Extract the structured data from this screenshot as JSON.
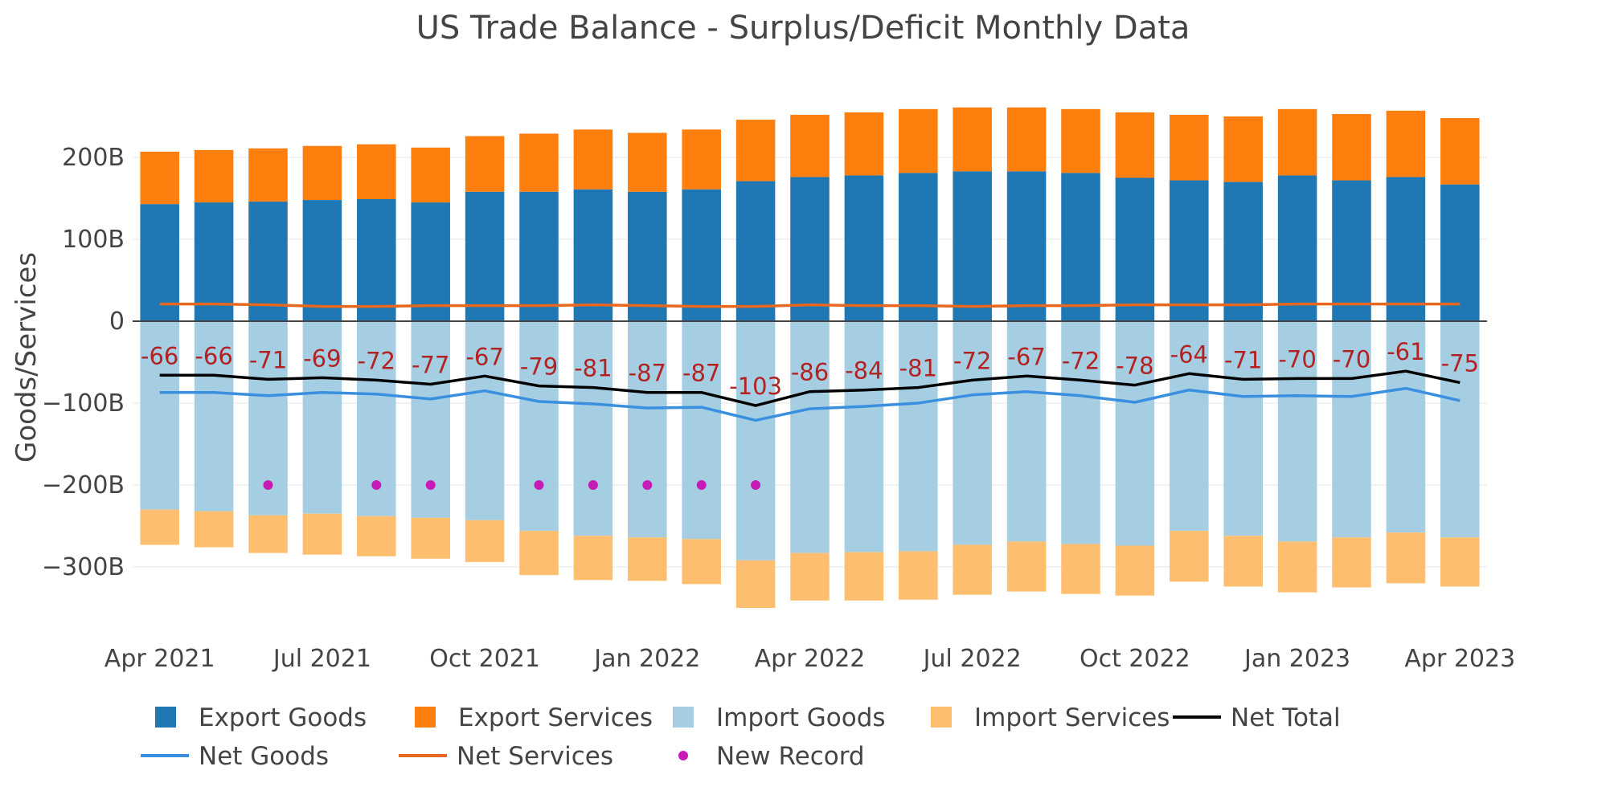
{
  "chart_data": {
    "type": "bar",
    "title": "US Trade Balance - Surplus/Deficit Monthly Data",
    "ylabel": "Goods/Services",
    "xlabel": "",
    "ylim": [
      -370,
      265
    ],
    "y_ticks": [
      {
        "value": 200,
        "label": "200B"
      },
      {
        "value": 100,
        "label": "100B"
      },
      {
        "value": 0,
        "label": "0"
      },
      {
        "value": -100,
        "label": "−100B"
      },
      {
        "value": -200,
        "label": "−200B"
      },
      {
        "value": -300,
        "label": "−300B"
      }
    ],
    "x_ticks": [
      {
        "index": 0,
        "label": "Apr 2021"
      },
      {
        "index": 3,
        "label": "Jul 2021"
      },
      {
        "index": 6,
        "label": "Oct 2021"
      },
      {
        "index": 9,
        "label": "Jan 2022"
      },
      {
        "index": 12,
        "label": "Apr 2022"
      },
      {
        "index": 15,
        "label": "Jul 2022"
      },
      {
        "index": 18,
        "label": "Oct 2022"
      },
      {
        "index": 21,
        "label": "Jan 2023"
      },
      {
        "index": 24,
        "label": "Apr 2023"
      }
    ],
    "categories": [
      "Apr 2021",
      "May 2021",
      "Jun 2021",
      "Jul 2021",
      "Aug 2021",
      "Sep 2021",
      "Oct 2021",
      "Nov 2021",
      "Dec 2021",
      "Jan 2022",
      "Feb 2022",
      "Mar 2022",
      "Apr 2022",
      "May 2022",
      "Jun 2022",
      "Jul 2022",
      "Aug 2022",
      "Sep 2022",
      "Oct 2022",
      "Nov 2022",
      "Dec 2022",
      "Jan 2023",
      "Feb 2023",
      "Mar 2023",
      "Apr 2023"
    ],
    "series": [
      {
        "name": "Export Goods",
        "kind": "bar",
        "color": "#1f77b4",
        "values": [
          143,
          145,
          146,
          148,
          149,
          145,
          158,
          158,
          161,
          158,
          161,
          171,
          176,
          178,
          181,
          183,
          183,
          181,
          175,
          172,
          170,
          178,
          172,
          176,
          167
        ]
      },
      {
        "name": "Export Services",
        "kind": "bar",
        "color": "#ff7f0e",
        "values": [
          64,
          64,
          65,
          66,
          67,
          67,
          68,
          71,
          73,
          72,
          73,
          75,
          76,
          77,
          78,
          78,
          78,
          78,
          80,
          80,
          80,
          81,
          81,
          81,
          81
        ]
      },
      {
        "name": "Import Goods",
        "kind": "bar",
        "color": "#a6cee3",
        "values": [
          -230,
          -232,
          -237,
          -235,
          -238,
          -240,
          -243,
          -256,
          -262,
          -264,
          -266,
          -292,
          -283,
          -282,
          -281,
          -273,
          -269,
          -272,
          -274,
          -256,
          -262,
          -269,
          -264,
          -258,
          -264
        ]
      },
      {
        "name": "Import Services",
        "kind": "bar",
        "color": "#fdbf6f",
        "values": [
          -43,
          -44,
          -46,
          -50,
          -49,
          -50,
          -51,
          -54,
          -54,
          -53,
          -55,
          -58,
          -58,
          -59,
          -59,
          -61,
          -61,
          -61,
          -61,
          -62,
          -62,
          -62,
          -61,
          -62,
          -60
        ]
      },
      {
        "name": "Net Total",
        "kind": "line",
        "color": "#000000",
        "values": [
          -66,
          -66,
          -71,
          -69,
          -72,
          -77,
          -67,
          -79,
          -81,
          -87,
          -87,
          -103,
          -86,
          -84,
          -81,
          -72,
          -67,
          -72,
          -78,
          -64,
          -71,
          -70,
          -70,
          -61,
          -75
        ]
      },
      {
        "name": "Net Goods",
        "kind": "line",
        "color": "#3a8fdf",
        "values": [
          -87,
          -87,
          -91,
          -87,
          -89,
          -95,
          -85,
          -98,
          -101,
          -106,
          -105,
          -121,
          -107,
          -104,
          -100,
          -90,
          -86,
          -91,
          -99,
          -84,
          -92,
          -91,
          -92,
          -82,
          -97
        ]
      },
      {
        "name": "Net Services",
        "kind": "line",
        "color": "#e8681f",
        "values": [
          21,
          21,
          20,
          18,
          18,
          19,
          19,
          19,
          20,
          19,
          18,
          18,
          20,
          19,
          19,
          18,
          19,
          19,
          20,
          20,
          20,
          21,
          21,
          21,
          21
        ]
      },
      {
        "name": "New Record",
        "kind": "marker",
        "color": "#c71bb8",
        "indices": [
          2,
          4,
          5,
          7,
          8,
          9,
          10,
          11
        ],
        "y": -200
      }
    ],
    "data_labels": [
      "-66",
      "-66",
      "-71",
      "-69",
      "-72",
      "-77",
      "-67",
      "-79",
      "-81",
      "-87",
      "-87",
      "-103",
      "-86",
      "-84",
      "-81",
      "-72",
      "-67",
      "-72",
      "-78",
      "-64",
      "-71",
      "-70",
      "-70",
      "-61",
      "-75"
    ],
    "legend": {
      "position": "bottom",
      "items": [
        {
          "label": "Export Goods",
          "symbol": "square",
          "color": "#1f77b4"
        },
        {
          "label": "Export Services",
          "symbol": "square",
          "color": "#ff7f0e"
        },
        {
          "label": "Import Goods",
          "symbol": "square",
          "color": "#a6cee3"
        },
        {
          "label": "Import Services",
          "symbol": "square",
          "color": "#fdbf6f"
        },
        {
          "label": "Net Total",
          "symbol": "line",
          "color": "#000000"
        },
        {
          "label": "Net Goods",
          "symbol": "line",
          "color": "#3a8fdf"
        },
        {
          "label": "Net Services",
          "symbol": "line",
          "color": "#e8681f"
        },
        {
          "label": "New Record",
          "symbol": "dot",
          "color": "#c71bb8"
        }
      ]
    },
    "grid": true
  }
}
